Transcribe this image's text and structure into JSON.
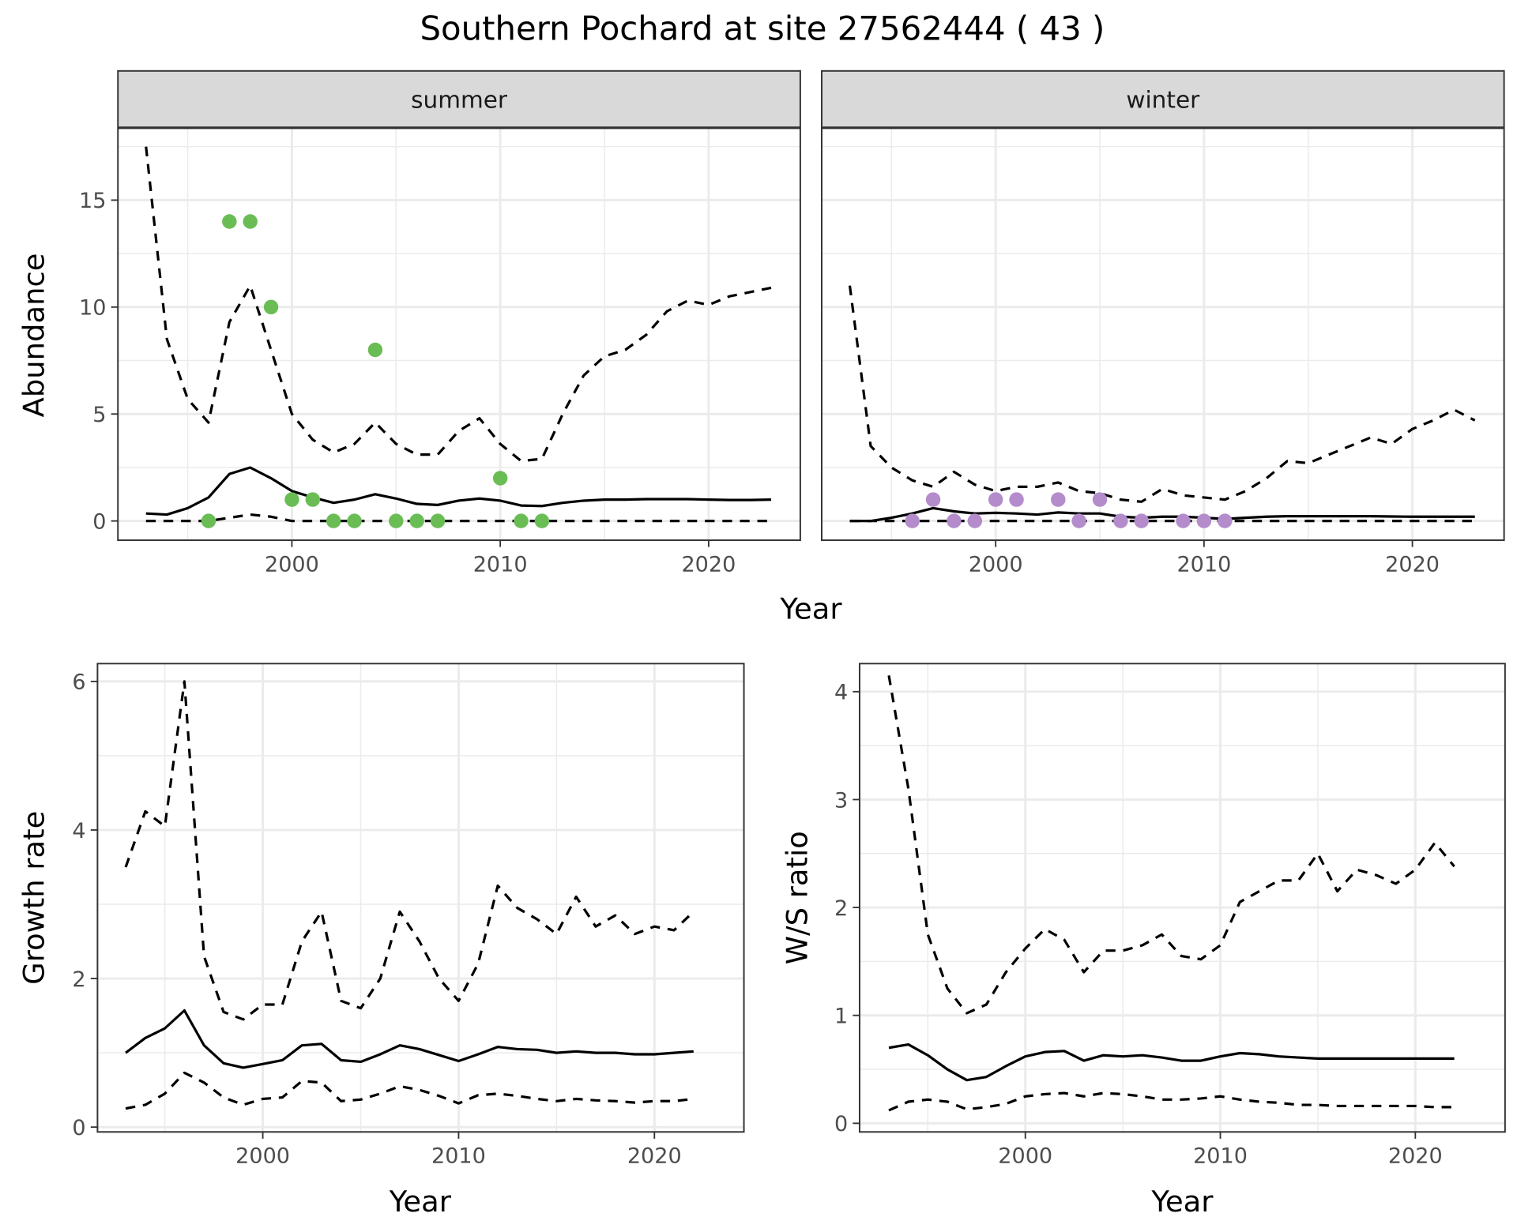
{
  "title": "Southern Pochard at site 27562444 ( 43 )",
  "colors": {
    "summer_points": "#6abd55",
    "winter_points": "#b48ccc",
    "lines": "#000000",
    "strip_bg": "#d9d9d9",
    "grid": "#ebebeb"
  },
  "chart_data": [
    {
      "type": "line",
      "facet": "summer",
      "xlabel": "Year",
      "ylabel": "Abundance",
      "xlim": [
        1991.65,
        2024.4
      ],
      "ylim": [
        -0.9,
        18.36
      ],
      "xticks": [
        2000,
        2010,
        2020
      ],
      "yticks": [
        0,
        5,
        10,
        15
      ],
      "grid": true,
      "x": [
        1993,
        1994,
        1995,
        1996,
        1997,
        1998,
        1999,
        2000,
        2001,
        2002,
        2003,
        2004,
        2005,
        2006,
        2007,
        2008,
        2009,
        2010,
        2011,
        2012,
        2013,
        2014,
        2015,
        2016,
        2017,
        2018,
        2019,
        2020,
        2021,
        2022,
        2023
      ],
      "series": [
        {
          "style": "solid",
          "values": [
            0.35,
            0.3,
            0.6,
            1.1,
            2.2,
            2.5,
            2.0,
            1.4,
            1.1,
            0.85,
            1.0,
            1.25,
            1.05,
            0.8,
            0.75,
            0.95,
            1.05,
            0.95,
            0.72,
            0.7,
            0.85,
            0.95,
            1.0,
            1.0,
            1.02,
            1.02,
            1.02,
            1.0,
            0.98,
            0.98,
            1.0
          ]
        },
        {
          "style": "dashed",
          "values": [
            17.5,
            8.5,
            5.7,
            4.6,
            9.3,
            11,
            8,
            5,
            3.8,
            3.2,
            3.6,
            4.6,
            3.6,
            3.1,
            3.1,
            4.2,
            4.8,
            3.6,
            2.8,
            2.9,
            5,
            6.8,
            7.7,
            8,
            8.7,
            9.8,
            10.3,
            10.1,
            10.5,
            10.7,
            10.9
          ]
        },
        {
          "style": "dashed",
          "values": [
            0,
            0,
            0,
            0,
            0.15,
            0.3,
            0.2,
            0,
            0,
            0,
            0,
            0,
            0,
            0,
            0,
            0,
            0,
            0,
            0,
            0,
            0,
            0,
            0,
            0,
            0,
            0,
            0,
            0,
            0,
            0,
            0
          ]
        }
      ],
      "points": {
        "x": [
          1996,
          1997,
          1998,
          1999,
          2000,
          2001,
          2002,
          2003,
          2004,
          2005,
          2006,
          2007,
          2010,
          2011,
          2012
        ],
        "y": [
          0,
          14,
          14,
          10,
          1,
          1,
          0,
          0,
          8,
          0,
          0,
          0,
          2,
          0,
          0
        ]
      }
    },
    {
      "type": "line",
      "facet": "winter",
      "xlabel": "Year",
      "ylabel": "Abundance",
      "xlim": [
        1991.65,
        2024.4
      ],
      "ylim": [
        -0.9,
        18.36
      ],
      "xticks": [
        2000,
        2010,
        2020
      ],
      "yticks": [
        0,
        5,
        10,
        15
      ],
      "grid": true,
      "x": [
        1993,
        1994,
        1995,
        1996,
        1997,
        1998,
        1999,
        2000,
        2001,
        2002,
        2003,
        2004,
        2005,
        2006,
        2007,
        2008,
        2009,
        2010,
        2011,
        2012,
        2013,
        2014,
        2015,
        2016,
        2017,
        2018,
        2019,
        2020,
        2021,
        2022,
        2023
      ],
      "series": [
        {
          "style": "solid",
          "values": [
            0,
            0,
            0.15,
            0.35,
            0.6,
            0.45,
            0.35,
            0.38,
            0.35,
            0.3,
            0.4,
            0.35,
            0.35,
            0.2,
            0.15,
            0.2,
            0.2,
            0.15,
            0.1,
            0.15,
            0.2,
            0.22,
            0.22,
            0.22,
            0.22,
            0.22,
            0.21,
            0.2,
            0.2,
            0.2,
            0.2
          ]
        },
        {
          "style": "dashed",
          "values": [
            11,
            3.5,
            2.5,
            1.9,
            1.6,
            2.3,
            1.7,
            1.4,
            1.6,
            1.6,
            1.8,
            1.4,
            1.3,
            1.0,
            0.9,
            1.5,
            1.2,
            1.1,
            1.0,
            1.4,
            2.0,
            2.8,
            2.7,
            3.1,
            3.5,
            3.9,
            3.6,
            4.3,
            4.7,
            5.2,
            4.7
          ]
        },
        {
          "style": "dashed",
          "values": [
            0,
            0,
            0,
            0,
            0,
            0,
            0,
            0,
            0,
            0,
            0,
            0,
            0,
            0,
            0,
            0,
            0,
            0,
            0,
            0,
            0,
            0,
            0,
            0,
            0,
            0,
            0,
            0,
            0,
            0,
            0
          ]
        }
      ],
      "points": {
        "x": [
          1996,
          1997,
          1998,
          1999,
          2000,
          2001,
          2003,
          2004,
          2005,
          2006,
          2007,
          2009,
          2010,
          2011
        ],
        "y": [
          0,
          1,
          0,
          0,
          1,
          1,
          1,
          0,
          1,
          0,
          0,
          0,
          0,
          0
        ]
      }
    },
    {
      "type": "line",
      "xlabel": "Year",
      "ylabel": "Growth rate",
      "xlim": [
        1991.56,
        2024.57
      ],
      "ylim": [
        -0.065,
        6.24
      ],
      "xticks": [
        2000,
        2010,
        2020
      ],
      "yticks": [
        0,
        2,
        4,
        6
      ],
      "grid": true,
      "x": [
        1993,
        1994,
        1995,
        1996,
        1997,
        1998,
        1999,
        2000,
        2001,
        2002,
        2003,
        2004,
        2005,
        2006,
        2007,
        2008,
        2009,
        2010,
        2011,
        2012,
        2013,
        2014,
        2015,
        2016,
        2017,
        2018,
        2019,
        2020,
        2021,
        2022
      ],
      "series": [
        {
          "style": "solid",
          "values": [
            1.0,
            1.2,
            1.33,
            1.57,
            1.1,
            0.86,
            0.8,
            0.85,
            0.9,
            1.1,
            1.12,
            0.9,
            0.88,
            0.98,
            1.1,
            1.05,
            0.97,
            0.89,
            0.98,
            1.08,
            1.05,
            1.04,
            1.0,
            1.02,
            1.0,
            1.0,
            0.98,
            0.98,
            1.0,
            1.02
          ]
        },
        {
          "style": "dashed",
          "values": [
            3.5,
            4.25,
            4.05,
            6.0,
            2.3,
            1.55,
            1.45,
            1.65,
            1.65,
            2.5,
            2.9,
            1.7,
            1.6,
            2.0,
            2.9,
            2.5,
            2.0,
            1.7,
            2.2,
            3.25,
            2.95,
            2.8,
            2.6,
            3.1,
            2.7,
            2.85,
            2.6,
            2.7,
            2.65,
            2.9
          ]
        },
        {
          "style": "dashed",
          "values": [
            0.25,
            0.3,
            0.45,
            0.73,
            0.6,
            0.4,
            0.3,
            0.38,
            0.4,
            0.62,
            0.6,
            0.35,
            0.37,
            0.45,
            0.55,
            0.5,
            0.42,
            0.32,
            0.43,
            0.45,
            0.42,
            0.38,
            0.35,
            0.38,
            0.36,
            0.35,
            0.33,
            0.35,
            0.35,
            0.38
          ]
        }
      ]
    },
    {
      "type": "line",
      "xlabel": "Year",
      "ylabel": "W/S ratio",
      "xlim": [
        1991.5,
        2024.6
      ],
      "ylim": [
        -0.08,
        4.26
      ],
      "xticks": [
        2000,
        2010,
        2020
      ],
      "yticks": [
        0,
        1,
        2,
        3,
        4
      ],
      "grid": true,
      "x": [
        1993,
        1994,
        1995,
        1996,
        1997,
        1998,
        1999,
        2000,
        2001,
        2002,
        2003,
        2004,
        2005,
        2006,
        2007,
        2008,
        2009,
        2010,
        2011,
        2012,
        2013,
        2014,
        2015,
        2016,
        2017,
        2018,
        2019,
        2020,
        2021,
        2022
      ],
      "series": [
        {
          "style": "solid",
          "values": [
            0.7,
            0.73,
            0.63,
            0.5,
            0.4,
            0.43,
            0.53,
            0.62,
            0.66,
            0.67,
            0.58,
            0.63,
            0.62,
            0.63,
            0.61,
            0.58,
            0.58,
            0.62,
            0.65,
            0.64,
            0.62,
            0.61,
            0.6,
            0.6,
            0.6,
            0.6,
            0.6,
            0.6,
            0.6,
            0.6
          ]
        },
        {
          "style": "dashed",
          "values": [
            4.15,
            3.1,
            1.75,
            1.25,
            1.02,
            1.1,
            1.4,
            1.62,
            1.8,
            1.7,
            1.4,
            1.6,
            1.6,
            1.65,
            1.75,
            1.55,
            1.52,
            1.65,
            2.05,
            2.15,
            2.25,
            2.25,
            2.5,
            2.15,
            2.35,
            2.3,
            2.22,
            2.35,
            2.6,
            2.38
          ]
        },
        {
          "style": "dashed",
          "values": [
            0.12,
            0.2,
            0.22,
            0.2,
            0.13,
            0.15,
            0.18,
            0.25,
            0.27,
            0.28,
            0.25,
            0.28,
            0.27,
            0.25,
            0.22,
            0.22,
            0.23,
            0.25,
            0.22,
            0.2,
            0.19,
            0.17,
            0.17,
            0.16,
            0.16,
            0.16,
            0.16,
            0.16,
            0.15,
            0.15
          ]
        }
      ]
    }
  ]
}
